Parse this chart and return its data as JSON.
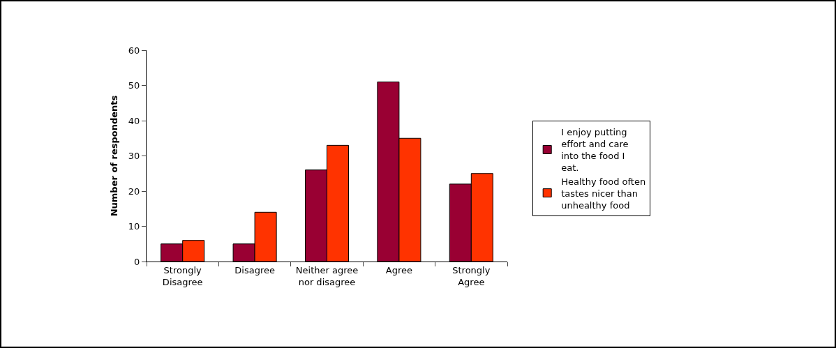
{
  "chart_data": {
    "type": "bar",
    "ylabel": "Number of respondents",
    "categories": [
      "Strongly Disagree",
      "Disagree",
      "Neither agree nor disagree",
      "Agree",
      "Strongly Agree"
    ],
    "series": [
      {
        "name": "I enjoy putting effort and care into the food I eat.",
        "color": "#990033",
        "values": [
          5,
          5,
          26,
          51,
          22
        ]
      },
      {
        "name": "Healthy food often tastes nicer than unhealthy food",
        "color": "#ff3300",
        "values": [
          6,
          14,
          33,
          35,
          25
        ]
      }
    ],
    "ylim": [
      0,
      60
    ],
    "yticks": [
      0,
      10,
      20,
      30,
      40,
      50,
      60
    ],
    "grid": false,
    "legend": "right"
  }
}
